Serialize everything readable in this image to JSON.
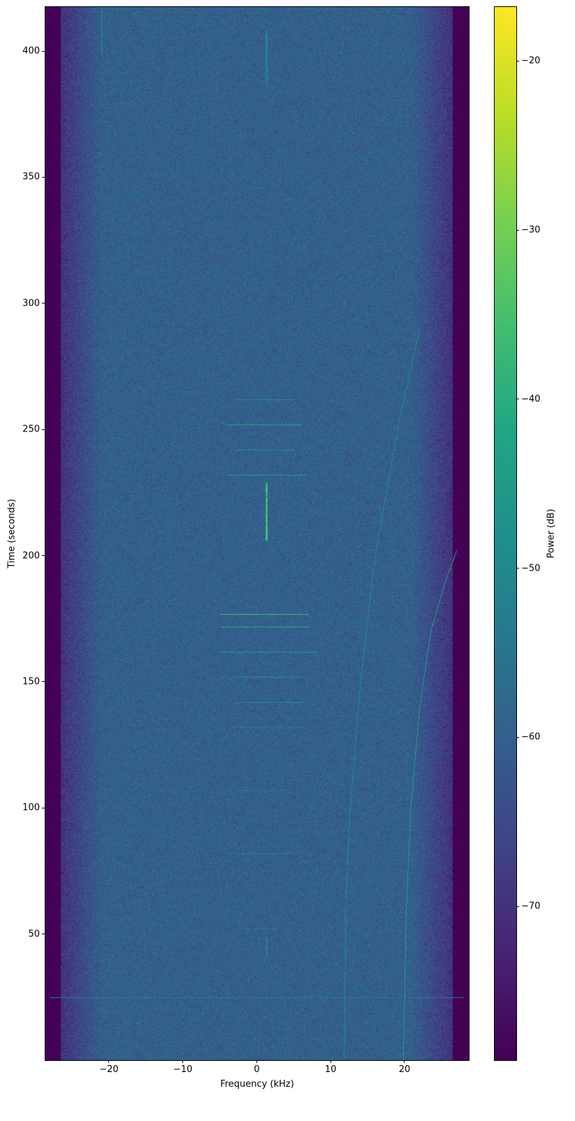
{
  "chart_data": {
    "type": "heatmap",
    "subtype": "spectrogram",
    "title": "",
    "xlabel": "Frequency (kHz)",
    "ylabel": "Time (seconds)",
    "colorbar_label": "Power (dB)",
    "colormap": "viridis",
    "xlim": [
      -28.6,
      28.7
    ],
    "ylim": [
      0,
      417.5
    ],
    "clim": [
      -79.1,
      -16.8
    ],
    "xticks": [
      -20,
      -10,
      0,
      10,
      20
    ],
    "xtick_labels": [
      "−20",
      "−10",
      "0",
      "10",
      "20"
    ],
    "yticks": [
      50,
      100,
      150,
      200,
      250,
      300,
      350,
      400
    ],
    "ytick_labels": [
      "50",
      "100",
      "150",
      "200",
      "250",
      "300",
      "350",
      "400"
    ],
    "cticks": [
      -70,
      -60,
      -50,
      -40,
      -30,
      -20
    ],
    "ctick_labels": [
      "−70",
      "−60",
      "−50",
      "−40",
      "−30",
      "−20"
    ],
    "grid": false,
    "noise_floor_db": -60,
    "band_edge_db": -79,
    "passband_khz": [
      -26.5,
      26.5
    ],
    "carrier_segments": [
      {
        "freq_khz": 1.3,
        "t_start": 206,
        "t_end": 229,
        "power_db": -33
      },
      {
        "freq_khz": 1.3,
        "t_start": 387,
        "t_end": 408,
        "power_db": -47
      },
      {
        "freq_khz": 1.3,
        "t_start": 41,
        "t_end": 49,
        "power_db": -50
      },
      {
        "freq_khz": -21,
        "t_start": 398,
        "t_end": 417,
        "power_db": -52
      }
    ],
    "horizontal_bursts": [
      {
        "time_s": 262,
        "f_start": -3,
        "f_end": 5,
        "power_db": -48
      },
      {
        "time_s": 252,
        "f_start": -4,
        "f_end": 6,
        "power_db": -42
      },
      {
        "time_s": 242,
        "f_start": -3,
        "f_end": 5,
        "power_db": -48
      },
      {
        "time_s": 232,
        "f_start": -4,
        "f_end": 7,
        "power_db": -46
      },
      {
        "time_s": 177,
        "f_start": -5,
        "f_end": 7,
        "power_db": -36
      },
      {
        "time_s": 172,
        "f_start": -5,
        "f_end": 7,
        "power_db": -40
      },
      {
        "time_s": 162,
        "f_start": -5,
        "f_end": 8,
        "power_db": -44
      },
      {
        "time_s": 152,
        "f_start": -3,
        "f_end": 6,
        "power_db": -46
      },
      {
        "time_s": 142,
        "f_start": -3,
        "f_end": 6,
        "power_db": -48
      },
      {
        "time_s": 132,
        "f_start": -3,
        "f_end": 6,
        "power_db": -53
      },
      {
        "time_s": 107,
        "f_start": -3,
        "f_end": 4,
        "power_db": -53
      },
      {
        "time_s": 82,
        "f_start": -3,
        "f_end": 5,
        "power_db": -52
      },
      {
        "time_s": 52,
        "f_start": -2,
        "f_end": 3,
        "power_db": -52
      },
      {
        "time_s": 25,
        "f_start": -28,
        "f_end": 28,
        "power_db": -53
      }
    ],
    "drifting_tones": [
      {
        "points": [
          [
            11.8,
            0
          ],
          [
            12.0,
            60
          ],
          [
            12.6,
            100
          ],
          [
            14,
            150
          ],
          [
            16,
            200
          ],
          [
            19,
            250
          ],
          [
            22,
            290
          ]
        ],
        "power_db": -50
      },
      {
        "points": [
          [
            19.8,
            0
          ],
          [
            20.2,
            60
          ],
          [
            20.8,
            100
          ],
          [
            22,
            140
          ],
          [
            23.5,
            170
          ],
          [
            25.5,
            190
          ],
          [
            27,
            202
          ]
        ],
        "power_db": -46
      }
    ]
  }
}
